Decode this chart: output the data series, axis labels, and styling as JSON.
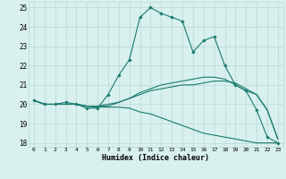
{
  "xlabel": "Humidex (Indice chaleur)",
  "x_values": [
    0,
    1,
    2,
    3,
    4,
    5,
    6,
    7,
    8,
    9,
    10,
    11,
    12,
    13,
    14,
    15,
    16,
    17,
    18,
    19,
    20,
    21,
    22,
    23
  ],
  "line1": [
    20.2,
    20.0,
    20.0,
    20.1,
    20.0,
    19.8,
    19.8,
    20.5,
    21.5,
    22.3,
    24.5,
    25.0,
    24.7,
    24.5,
    24.3,
    22.7,
    23.3,
    23.5,
    22.0,
    21.0,
    20.7,
    19.7,
    18.3,
    18.0
  ],
  "line2": [
    20.2,
    20.0,
    20.0,
    20.0,
    20.0,
    19.9,
    19.9,
    19.9,
    20.1,
    20.3,
    20.5,
    20.7,
    20.8,
    20.9,
    21.0,
    21.0,
    21.1,
    21.2,
    21.2,
    21.1,
    20.8,
    20.5,
    19.7,
    18.2
  ],
  "line3": [
    20.2,
    20.0,
    20.0,
    20.0,
    20.0,
    19.9,
    19.9,
    20.0,
    20.1,
    20.3,
    20.6,
    20.8,
    21.0,
    21.1,
    21.2,
    21.3,
    21.4,
    21.4,
    21.3,
    21.0,
    20.7,
    20.5,
    19.7,
    18.2
  ],
  "line4": [
    20.2,
    20.0,
    20.0,
    20.0,
    20.0,
    19.9,
    19.85,
    19.85,
    19.85,
    19.8,
    19.6,
    19.5,
    19.3,
    19.1,
    18.9,
    18.7,
    18.5,
    18.4,
    18.3,
    18.2,
    18.1,
    18.0,
    18.0,
    18.0
  ],
  "line_color": "#1a7a6e",
  "bg_color": "#d8f0ee",
  "grid_color": "#b8d8d4",
  "ylim": [
    17.8,
    25.3
  ],
  "yticks": [
    18,
    19,
    20,
    21,
    22,
    23,
    24,
    25
  ],
  "xlim": [
    -0.5,
    23.5
  ]
}
